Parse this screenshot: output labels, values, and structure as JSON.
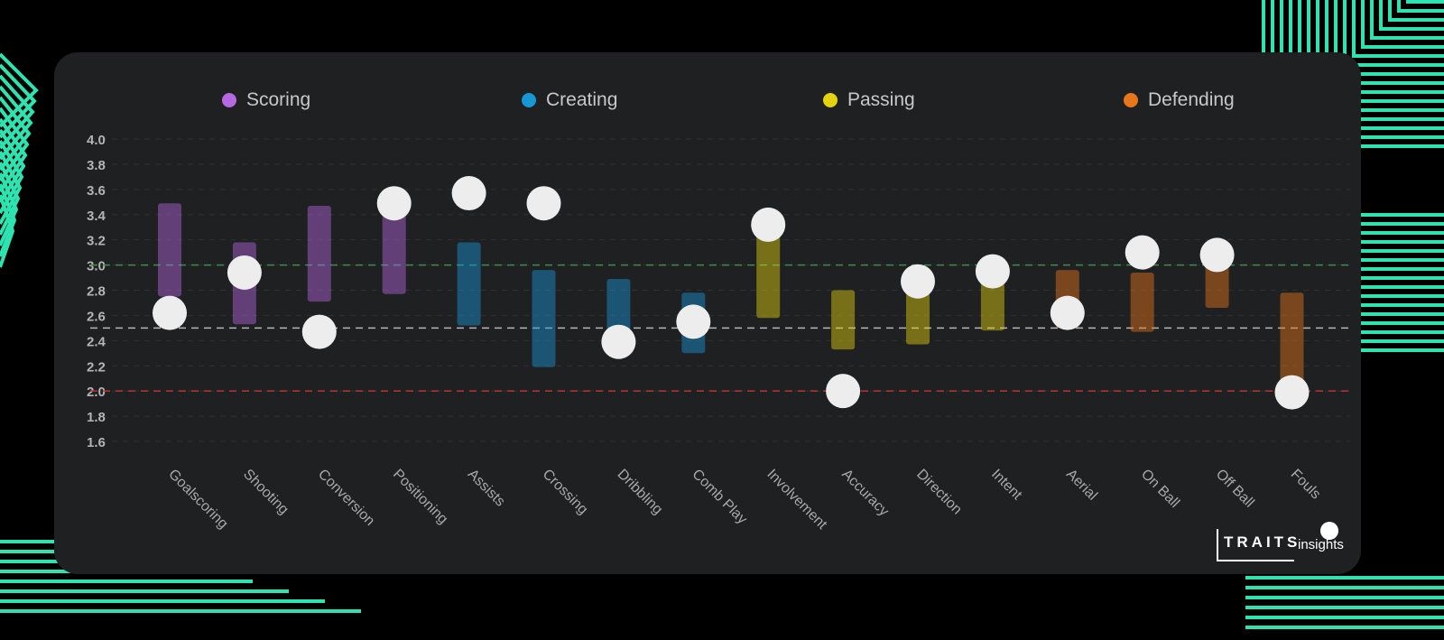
{
  "legend": [
    {
      "label": "Scoring",
      "color": "#b469e0"
    },
    {
      "label": "Creating",
      "color": "#1797d6"
    },
    {
      "label": "Passing",
      "color": "#e3d20d"
    },
    {
      "label": "Defending",
      "color": "#e8761b"
    }
  ],
  "logo": {
    "brand": "TRAITS",
    "sub": "insights"
  },
  "chart_data": {
    "type": "range-dot",
    "title": "",
    "xlabel": "",
    "ylabel": "",
    "ylim": [
      1.6,
      4.0
    ],
    "yticks": [
      "4.0",
      "3.8",
      "3.6",
      "3.4",
      "3.2",
      "3.0",
      "2.8",
      "2.6",
      "2.4",
      "2.2",
      "2.0",
      "1.8",
      "1.6"
    ],
    "reference_lines": [
      {
        "value": 3.0,
        "color": "#3f8a52"
      },
      {
        "value": 2.5,
        "color": "#b6b6b6"
      },
      {
        "value": 2.0,
        "color": "#b8352f"
      }
    ],
    "grid": true,
    "legend_position": "top",
    "categories": [
      "Goalscoring",
      "Shooting",
      "Conversion",
      "Positioning",
      "Assists",
      "Crossing",
      "Dribbling",
      "Comb Play",
      "Involvement",
      "Accuracy",
      "Direction",
      "Intent",
      "Aerial",
      "On Ball",
      "Off Ball",
      "Fouls"
    ],
    "groups": [
      "Scoring",
      "Scoring",
      "Scoring",
      "Scoring",
      "Creating",
      "Creating",
      "Creating",
      "Creating",
      "Passing",
      "Passing",
      "Passing",
      "Passing",
      "Defending",
      "Defending",
      "Defending",
      "Defending"
    ],
    "range_low": [
      2.75,
      2.53,
      2.71,
      2.77,
      2.52,
      2.19,
      2.41,
      2.3,
      2.58,
      2.33,
      2.37,
      2.48,
      2.5,
      2.47,
      2.66,
      2.0
    ],
    "range_high": [
      3.49,
      3.18,
      3.47,
      3.48,
      3.18,
      2.96,
      2.89,
      2.78,
      3.3,
      2.8,
      2.82,
      2.91,
      2.96,
      2.94,
      3.05,
      2.78
    ],
    "values": [
      2.62,
      2.94,
      2.47,
      3.49,
      3.57,
      3.49,
      2.39,
      2.55,
      3.32,
      2.0,
      2.87,
      2.95,
      2.62,
      3.1,
      3.08,
      1.99
    ]
  }
}
